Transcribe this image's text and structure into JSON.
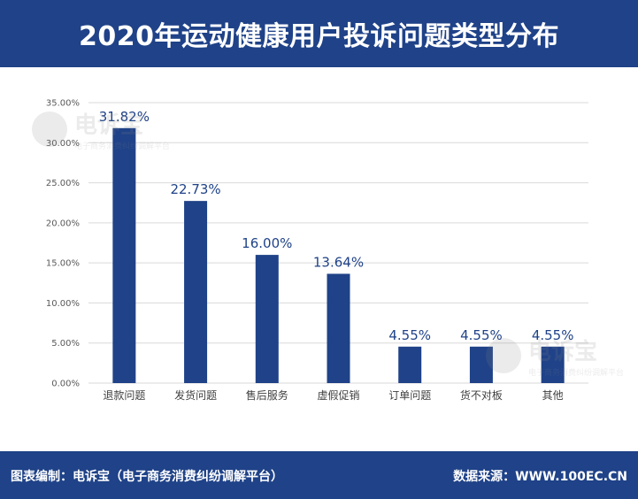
{
  "header": {
    "title": "2020年运动健康用户投诉问题类型分布"
  },
  "watermark": {
    "text": "电诉宝",
    "subtext": "电子商务消费纠纷调解平台"
  },
  "footer": {
    "left_text": "图表编制：电诉宝（电子商务消费纠纷调解平台）",
    "right_text": "数据来源：WWW.100EC.CN"
  },
  "colors": {
    "bar": "#1f4288",
    "header_bg": "#1f4288",
    "grid": "#d9d9d9",
    "label": "#1f4288"
  },
  "chart_data": {
    "type": "bar",
    "title": "2020年运动健康用户投诉问题类型分布",
    "categories": [
      "退款问题",
      "发货问题",
      "售后服务",
      "虚假促销",
      "订单问题",
      "货不对板",
      "其他"
    ],
    "values": [
      31.82,
      22.73,
      16.0,
      13.64,
      4.55,
      4.55,
      4.55
    ],
    "value_labels": [
      "31.82%",
      "22.73%",
      "16.00%",
      "13.64%",
      "4.55%",
      "4.55%",
      "4.55%"
    ],
    "yticks": [
      "0.00%",
      "5.00%",
      "10.00%",
      "15.00%",
      "20.00%",
      "25.00%",
      "30.00%",
      "35.00%"
    ],
    "ylim": [
      0,
      35
    ],
    "grid": true,
    "legend": "none"
  }
}
